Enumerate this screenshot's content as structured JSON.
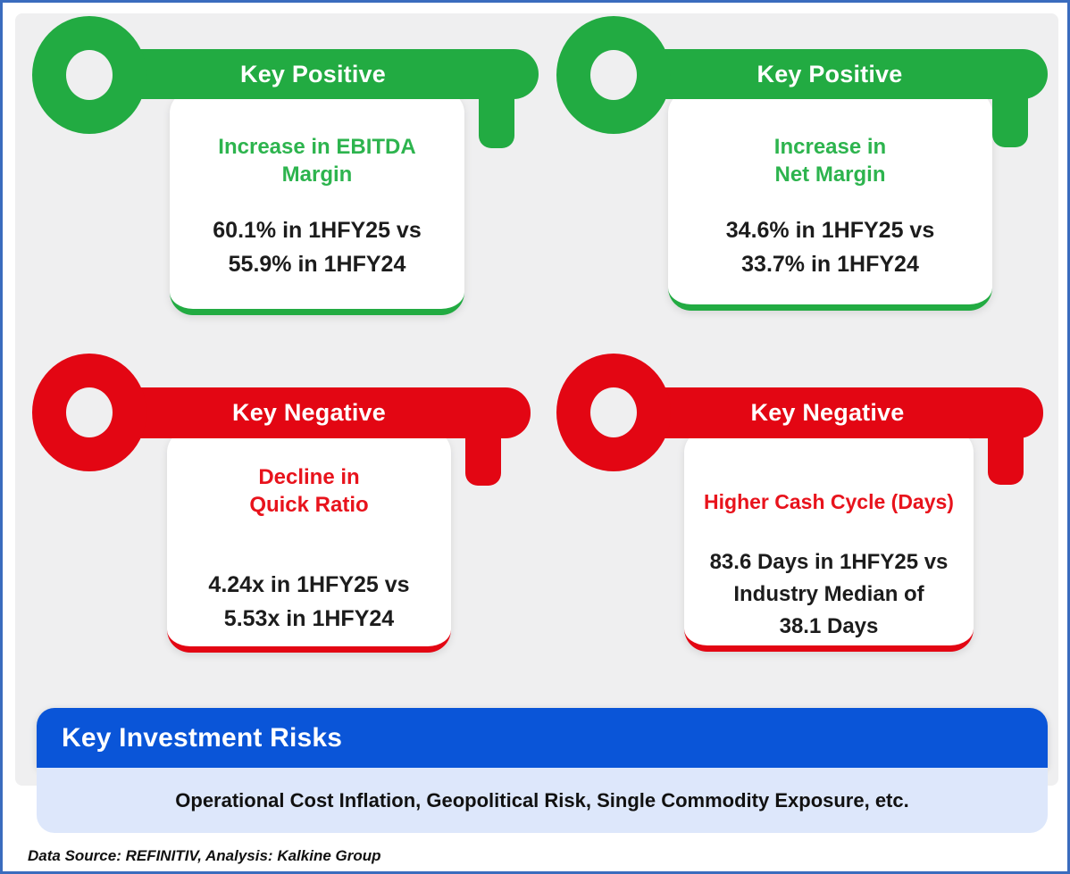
{
  "cards": [
    {
      "key_label": "Key Positive",
      "sentiment": "positive",
      "heading_lines": [
        "Increase in EBITDA",
        "Margin"
      ],
      "value_lines": [
        "60.1% in 1HFY25 vs",
        "55.9% in 1HFY24"
      ]
    },
    {
      "key_label": "Key Positive",
      "sentiment": "positive",
      "heading_lines": [
        "Increase in",
        "Net Margin"
      ],
      "value_lines": [
        "34.6% in 1HFY25 vs",
        "33.7% in 1HFY24"
      ]
    },
    {
      "key_label": "Key Negative",
      "sentiment": "negative",
      "heading_lines": [
        "Decline in",
        "Quick Ratio"
      ],
      "value_lines": [
        "4.24x in 1HFY25 vs",
        "5.53x in 1HFY24"
      ]
    },
    {
      "key_label": "Key Negative",
      "sentiment": "negative",
      "heading_lines": [
        "Higher Cash Cycle (Days)"
      ],
      "value_lines": [
        "83.6 Days in 1HFY25 vs",
        "Industry Median of",
        "38.1 Days"
      ]
    }
  ],
  "risks": {
    "title": "Key Investment Risks",
    "body": "Operational Cost Inflation, Geopolitical Risk, Single Commodity Exposure, etc."
  },
  "footer": "Data Source: REFINITIV, Analysis: Kalkine Group",
  "colors": {
    "positive": "#22ab42",
    "positive_text": "#2db44e",
    "negative": "#e30613",
    "negative_text": "#e8131c",
    "risk_bar": "#0a55d8",
    "risk_body_bg": "#dde7fb",
    "frame_border": "#3a6cbe"
  }
}
